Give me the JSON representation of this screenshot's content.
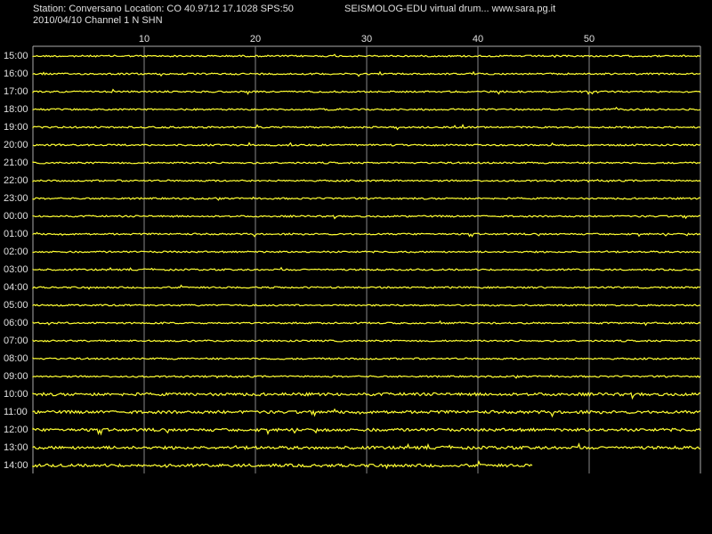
{
  "header": {
    "station": "Station: Conversano Location: CO 40.9712 17.1028 SPS:50",
    "program": "SEISMOLOG-EDU virtual drum... www.sara.pg.it",
    "date_channel": "2010/04/10  Channel 1 N SHN"
  },
  "minute_ticks": [
    10,
    20,
    30,
    40,
    50
  ],
  "rows": [
    "15:00",
    "16:00",
    "17:00",
    "18:00",
    "19:00",
    "20:00",
    "21:00",
    "22:00",
    "23:00",
    "00:00",
    "01:00",
    "02:00",
    "03:00",
    "04:00",
    "05:00",
    "06:00",
    "07:00",
    "08:00",
    "09:00",
    "10:00",
    "11:00",
    "12:00",
    "13:00",
    "14:00"
  ]
}
